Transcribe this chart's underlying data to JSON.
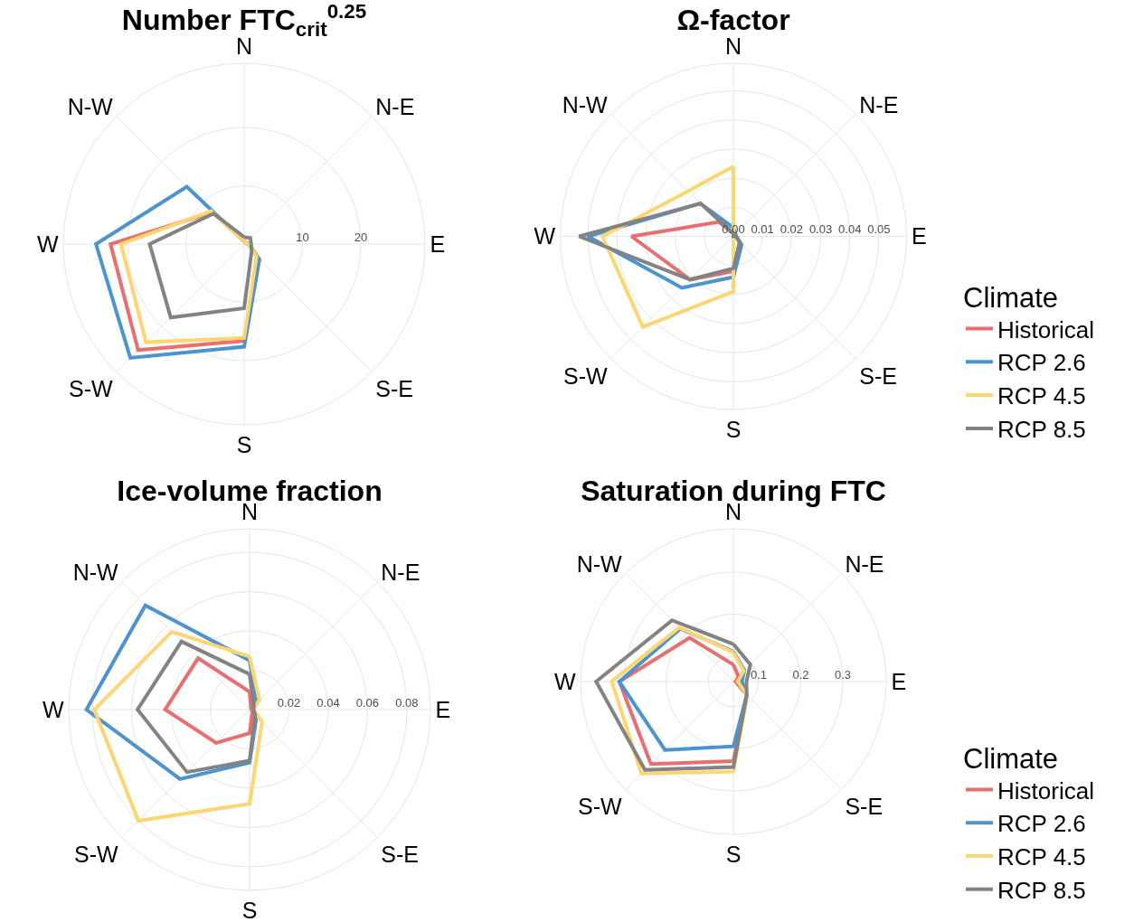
{
  "chart_data": [
    {
      "type": "radar",
      "title": "Number FTC$_{crit}$$^{0.25}$",
      "categories": [
        "N",
        "N-E",
        "E",
        "S-E",
        "S",
        "S-W",
        "W",
        "N-W"
      ],
      "ylim": [
        0,
        31
      ],
      "yticks": [
        10,
        20
      ],
      "grid": true,
      "legend": false,
      "series": [
        {
          "color": "#eb6e6e",
          "values": [
            0.5,
            0.3,
            0.8,
            3.2,
            16.6,
            25.7,
            22.9,
            7.7
          ]
        },
        {
          "color": "#4b93d1",
          "values": [
            0.5,
            0.3,
            0.8,
            3.7,
            17.6,
            27.6,
            25.4,
            13.9
          ]
        },
        {
          "color": "#fdd672",
          "values": [
            0.5,
            0.3,
            0.8,
            3.0,
            16.1,
            23.8,
            21.1,
            8.0
          ]
        },
        {
          "color": "#838383",
          "values": [
            1.2,
            1.5,
            1.2,
            1.8,
            11.0,
            17.8,
            16.2,
            7.4
          ]
        }
      ]
    },
    {
      "type": "radar",
      "title": "Ω-factor",
      "categories": [
        "N",
        "N-E",
        "E",
        "S-E",
        "S",
        "S-W",
        "W",
        "N-W"
      ],
      "ylim": [
        0,
        0.0595
      ],
      "yticks": [
        {
          "value": 0,
          "label": "0.00"
        },
        0.01,
        0.02,
        0.03,
        0.04,
        0.05
      ],
      "grid": true,
      "legend": "right",
      "legend_title": "Climate",
      "series": [
        {
          "name": "Historical",
          "color": "#eb6e6e",
          "values": [
            0.001,
            0.001,
            0.001,
            0.003,
            0.012,
            0.021,
            0.035,
            0.007
          ]
        },
        {
          "name": "RCP 2.6",
          "color": "#4b93d1",
          "values": [
            0.003,
            0.001,
            0.001,
            0.004,
            0.014,
            0.025,
            0.05,
            0.016
          ]
        },
        {
          "name": "RCP 4.5",
          "color": "#fdd672",
          "values": [
            0.024,
            0,
            0,
            0,
            0.019,
            0.044,
            0.045,
            0.022
          ]
        },
        {
          "name": "RCP 8.5",
          "color": "#838383",
          "values": [
            0.001,
            0,
            0.001,
            0.003,
            0.011,
            0.021,
            0.053,
            0.016
          ]
        }
      ]
    },
    {
      "type": "radar",
      "title": "Ice-volume fraction",
      "categories": [
        "N",
        "N-E",
        "E",
        "S-E",
        "S",
        "S-W",
        "W",
        "N-W"
      ],
      "ylim": [
        0,
        0.092
      ],
      "yticks": [
        0.02,
        0.04,
        0.06,
        0.08
      ],
      "grid": true,
      "legend": false,
      "series": [
        {
          "color": "#eb6e6e",
          "values": [
            0.009,
            0.001,
            0.001,
            0.002,
            0.012,
            0.024,
            0.043,
            0.037
          ]
        },
        {
          "color": "#4b93d1",
          "values": [
            0.025,
            0.005,
            0.002,
            0.005,
            0.027,
            0.05,
            0.083,
            0.075
          ]
        },
        {
          "color": "#fdd672",
          "values": [
            0.027,
            0.007,
            0.002,
            0.009,
            0.048,
            0.08,
            0.079,
            0.056
          ]
        },
        {
          "color": "#838383",
          "values": [
            0.018,
            0.003,
            0.002,
            0.004,
            0.026,
            0.045,
            0.057,
            0.049
          ]
        }
      ]
    },
    {
      "type": "radar",
      "title": "Saturation during FTC",
      "categories": [
        "N",
        "N-E",
        "E",
        "S-E",
        "S",
        "S-W",
        "W",
        "N-W"
      ],
      "ylim": [
        0.04,
        0.403
      ],
      "yticks": [
        0.1,
        0.2,
        0.3
      ],
      "grid": true,
      "legend": "right",
      "legend_title": "Climate",
      "series": [
        {
          "name": "Historical",
          "color": "#eb6e6e",
          "values": [
            0.08,
            0.057,
            0.045,
            0.085,
            0.229,
            0.317,
            0.311,
            0.187
          ]
        },
        {
          "name": "RCP 2.6",
          "color": "#4b93d1",
          "values": [
            0.111,
            0.077,
            0.06,
            0.085,
            0.194,
            0.27,
            0.311,
            0.218
          ]
        },
        {
          "name": "RCP 4.5",
          "color": "#fdd672",
          "values": [
            0.109,
            0.075,
            0.05,
            0.086,
            0.254,
            0.349,
            0.329,
            0.222
          ]
        },
        {
          "name": "RCP 8.5",
          "color": "#838383",
          "values": [
            0.129,
            0.097,
            0.071,
            0.085,
            0.243,
            0.337,
            0.366,
            0.246
          ]
        }
      ]
    }
  ]
}
